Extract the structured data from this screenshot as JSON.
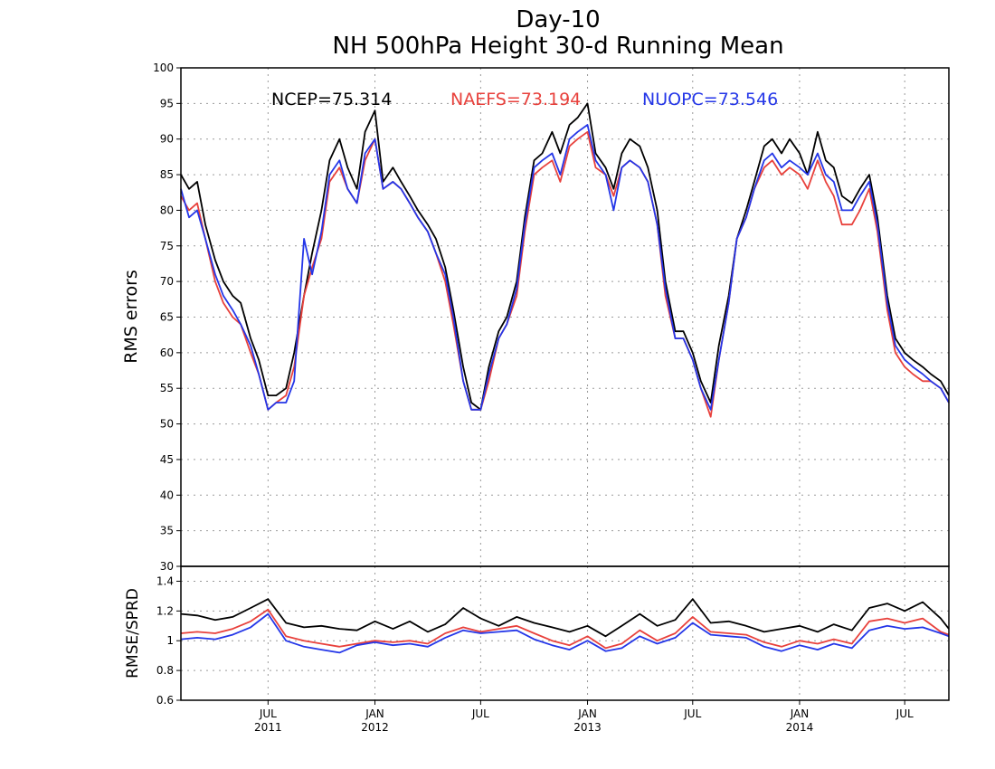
{
  "chart_data": [
    {
      "type": "line",
      "title": "Day-10",
      "subtitle": "NH 500hPa Height 30-d Running Mean",
      "xlabel": "",
      "ylabel": "RMS errors",
      "ylim": [
        30,
        100
      ],
      "yticks": [
        30,
        35,
        40,
        45,
        50,
        55,
        60,
        65,
        70,
        75,
        80,
        85,
        90,
        95,
        100
      ],
      "grid": true,
      "x_range": [
        "2011-02-01",
        "2014-09-15"
      ],
      "xticks": [
        {
          "date": "2011-07-01",
          "label": "JUL",
          "year": "2011"
        },
        {
          "date": "2012-01-01",
          "label": "JAN",
          "year": "2012"
        },
        {
          "date": "2012-07-01",
          "label": "JUL",
          "year": ""
        },
        {
          "date": "2013-01-01",
          "label": "JAN",
          "year": "2013"
        },
        {
          "date": "2013-07-01",
          "label": "JUL",
          "year": ""
        },
        {
          "date": "2014-01-01",
          "label": "JAN",
          "year": "2014"
        },
        {
          "date": "2014-07-01",
          "label": "JUL",
          "year": ""
        }
      ],
      "legend": [
        {
          "text": "NCEP=75.314",
          "color": "#000000"
        },
        {
          "text": "NAEFS=73.194",
          "color": "#e8413c"
        },
        {
          "text": "NUOPC=73.546",
          "color": "#2436e8"
        }
      ],
      "series": [
        {
          "name": "NCEP",
          "color": "#000000",
          "x": [
            "2011-02-01",
            "2011-02-15",
            "2011-03-01",
            "2011-03-15",
            "2011-04-01",
            "2011-04-15",
            "2011-05-01",
            "2011-05-15",
            "2011-06-01",
            "2011-06-15",
            "2011-07-01",
            "2011-07-15",
            "2011-08-01",
            "2011-08-15",
            "2011-09-01",
            "2011-09-15",
            "2011-10-01",
            "2011-10-15",
            "2011-11-01",
            "2011-11-15",
            "2011-12-01",
            "2011-12-15",
            "2012-01-01",
            "2012-01-15",
            "2012-02-01",
            "2012-02-15",
            "2012-03-01",
            "2012-03-15",
            "2012-04-01",
            "2012-04-15",
            "2012-05-01",
            "2012-05-15",
            "2012-06-01",
            "2012-06-15",
            "2012-07-01",
            "2012-07-15",
            "2012-08-01",
            "2012-08-15",
            "2012-09-01",
            "2012-09-15",
            "2012-10-01",
            "2012-10-15",
            "2012-11-01",
            "2012-11-15",
            "2012-12-01",
            "2012-12-15",
            "2013-01-01",
            "2013-01-15",
            "2013-02-01",
            "2013-02-15",
            "2013-03-01",
            "2013-03-15",
            "2013-04-01",
            "2013-04-15",
            "2013-05-01",
            "2013-05-15",
            "2013-06-01",
            "2013-06-15",
            "2013-07-01",
            "2013-07-15",
            "2013-08-01",
            "2013-08-15",
            "2013-09-01",
            "2013-09-15",
            "2013-10-01",
            "2013-10-15",
            "2013-11-01",
            "2013-11-15",
            "2013-12-01",
            "2013-12-15",
            "2014-01-01",
            "2014-01-15",
            "2014-02-01",
            "2014-02-15",
            "2014-03-01",
            "2014-03-15",
            "2014-04-01",
            "2014-04-15",
            "2014-05-01",
            "2014-05-15",
            "2014-06-01",
            "2014-06-15",
            "2014-07-01",
            "2014-07-15",
            "2014-08-01",
            "2014-08-15",
            "2014-09-01",
            "2014-09-15"
          ],
          "values": [
            85,
            83,
            84,
            78,
            73,
            70,
            68,
            67,
            62,
            59,
            54,
            54,
            55,
            60,
            68,
            74,
            80,
            87,
            90,
            86,
            83,
            91,
            94,
            84,
            86,
            84,
            82,
            80,
            78,
            76,
            72,
            66,
            58,
            53,
            52,
            58,
            63,
            65,
            70,
            79,
            87,
            88,
            91,
            88,
            92,
            93,
            95,
            88,
            86,
            83,
            88,
            90,
            89,
            86,
            80,
            70,
            63,
            63,
            60,
            56,
            53,
            61,
            68,
            76,
            80,
            84,
            89,
            90,
            88,
            90,
            88,
            85,
            91,
            87,
            86,
            82,
            81,
            83,
            85,
            79,
            68,
            62,
            60,
            59,
            58,
            57,
            56,
            54
          ]
        },
        {
          "name": "NAEFS",
          "color": "#e8413c",
          "x": [
            "2011-02-01",
            "2011-02-15",
            "2011-03-01",
            "2011-03-15",
            "2011-04-01",
            "2011-04-15",
            "2011-05-01",
            "2011-05-15",
            "2011-06-01",
            "2011-06-15",
            "2011-07-01",
            "2011-07-15",
            "2011-08-01",
            "2011-08-15",
            "2011-09-01",
            "2011-09-15",
            "2011-10-01",
            "2011-10-15",
            "2011-11-01",
            "2011-11-15",
            "2011-12-01",
            "2011-12-15",
            "2012-01-01",
            "2012-01-15",
            "2012-02-01",
            "2012-02-15",
            "2012-03-01",
            "2012-03-15",
            "2012-04-01",
            "2012-04-15",
            "2012-05-01",
            "2012-05-15",
            "2012-06-01",
            "2012-06-15",
            "2012-07-01",
            "2012-07-15",
            "2012-08-01",
            "2012-08-15",
            "2012-09-01",
            "2012-09-15",
            "2012-10-01",
            "2012-10-15",
            "2012-11-01",
            "2012-11-15",
            "2012-12-01",
            "2012-12-15",
            "2013-01-01",
            "2013-01-15",
            "2013-02-01",
            "2013-02-15",
            "2013-03-01",
            "2013-03-15",
            "2013-04-01",
            "2013-04-15",
            "2013-05-01",
            "2013-05-15",
            "2013-06-01",
            "2013-06-15",
            "2013-07-01",
            "2013-07-15",
            "2013-08-01",
            "2013-08-15",
            "2013-09-01",
            "2013-09-15",
            "2013-10-01",
            "2013-10-15",
            "2013-11-01",
            "2013-11-15",
            "2013-12-01",
            "2013-12-15",
            "2014-01-01",
            "2014-01-15",
            "2014-02-01",
            "2014-02-15",
            "2014-03-01",
            "2014-03-15",
            "2014-04-01",
            "2014-04-15",
            "2014-05-01",
            "2014-05-15",
            "2014-06-01",
            "2014-06-15",
            "2014-07-01",
            "2014-07-15",
            "2014-08-01",
            "2014-08-15",
            "2014-09-01",
            "2014-09-15"
          ],
          "values": [
            82,
            80,
            81,
            76,
            70,
            67,
            65,
            64,
            60,
            57,
            52,
            53,
            54,
            58,
            68,
            72,
            76,
            84,
            86,
            83,
            81,
            87,
            90,
            83,
            84,
            83,
            81,
            79,
            77,
            74,
            70,
            64,
            56,
            52,
            52,
            56,
            62,
            64,
            68,
            77,
            85,
            86,
            87,
            84,
            89,
            90,
            91,
            86,
            85,
            82,
            86,
            87,
            86,
            84,
            78,
            68,
            62,
            62,
            59,
            55,
            51,
            59,
            67,
            76,
            79,
            83,
            86,
            87,
            85,
            86,
            85,
            83,
            87,
            84,
            82,
            78,
            78,
            80,
            83,
            77,
            66,
            60,
            58,
            57,
            56,
            56,
            55,
            53
          ]
        },
        {
          "name": "NUOPC",
          "color": "#2436e8",
          "x": [
            "2011-02-01",
            "2011-02-15",
            "2011-03-01",
            "2011-03-15",
            "2011-04-01",
            "2011-04-15",
            "2011-05-01",
            "2011-05-15",
            "2011-06-01",
            "2011-06-15",
            "2011-07-01",
            "2011-07-15",
            "2011-08-01",
            "2011-08-15",
            "2011-09-01",
            "2011-09-15",
            "2011-10-01",
            "2011-10-15",
            "2011-11-01",
            "2011-11-15",
            "2011-12-01",
            "2011-12-15",
            "2012-01-01",
            "2012-01-15",
            "2012-02-01",
            "2012-02-15",
            "2012-03-01",
            "2012-03-15",
            "2012-04-01",
            "2012-04-15",
            "2012-05-01",
            "2012-05-15",
            "2012-06-01",
            "2012-06-15",
            "2012-07-01",
            "2012-07-15",
            "2012-08-01",
            "2012-08-15",
            "2012-09-01",
            "2012-09-15",
            "2012-10-01",
            "2012-10-15",
            "2012-11-01",
            "2012-11-15",
            "2012-12-01",
            "2012-12-15",
            "2013-01-01",
            "2013-01-15",
            "2013-02-01",
            "2013-02-15",
            "2013-03-01",
            "2013-03-15",
            "2013-04-01",
            "2013-04-15",
            "2013-05-01",
            "2013-05-15",
            "2013-06-01",
            "2013-06-15",
            "2013-07-01",
            "2013-07-15",
            "2013-08-01",
            "2013-08-15",
            "2013-09-01",
            "2013-09-15",
            "2013-10-01",
            "2013-10-15",
            "2013-11-01",
            "2013-11-15",
            "2013-12-01",
            "2013-12-15",
            "2014-01-01",
            "2014-01-15",
            "2014-02-01",
            "2014-02-15",
            "2014-03-01",
            "2014-03-15",
            "2014-04-01",
            "2014-04-15",
            "2014-05-01",
            "2014-05-15",
            "2014-06-01",
            "2014-06-15",
            "2014-07-01",
            "2014-07-15",
            "2014-08-01",
            "2014-08-15",
            "2014-09-01",
            "2014-09-15"
          ],
          "values": [
            83,
            79,
            80,
            76,
            71,
            68,
            66,
            64,
            61,
            57,
            52,
            53,
            53,
            56,
            76,
            71,
            77,
            85,
            87,
            83,
            81,
            88,
            90,
            83,
            84,
            83,
            81,
            79,
            77,
            74,
            71,
            65,
            56,
            52,
            52,
            57,
            62,
            64,
            69,
            78,
            86,
            87,
            88,
            85,
            90,
            91,
            92,
            87,
            85,
            80,
            86,
            87,
            86,
            84,
            78,
            69,
            62,
            62,
            59,
            55,
            52,
            59,
            67,
            76,
            79,
            83,
            87,
            88,
            86,
            87,
            86,
            85,
            88,
            85,
            84,
            80,
            80,
            82,
            84,
            78,
            67,
            61,
            59,
            58,
            57,
            56,
            55,
            53
          ]
        }
      ]
    },
    {
      "type": "line",
      "ylabel": "RMSE/SPRD",
      "ylim": [
        0.6,
        1.5
      ],
      "yticks": [
        0.6,
        0.8,
        1,
        1.2,
        1.4
      ],
      "grid": true,
      "series": [
        {
          "name": "NCEP",
          "color": "#000000",
          "x": [
            "2011-02-01",
            "2011-03-01",
            "2011-04-01",
            "2011-05-01",
            "2011-06-01",
            "2011-07-01",
            "2011-08-01",
            "2011-09-01",
            "2011-10-01",
            "2011-11-01",
            "2011-12-01",
            "2012-01-01",
            "2012-02-01",
            "2012-03-01",
            "2012-04-01",
            "2012-05-01",
            "2012-06-01",
            "2012-07-01",
            "2012-08-01",
            "2012-09-01",
            "2012-10-01",
            "2012-11-01",
            "2012-12-01",
            "2013-01-01",
            "2013-02-01",
            "2013-03-01",
            "2013-04-01",
            "2013-05-01",
            "2013-06-01",
            "2013-07-01",
            "2013-08-01",
            "2013-09-01",
            "2013-10-01",
            "2013-11-01",
            "2013-12-01",
            "2014-01-01",
            "2014-02-01",
            "2014-03-01",
            "2014-04-01",
            "2014-05-01",
            "2014-06-01",
            "2014-07-01",
            "2014-08-01",
            "2014-09-01",
            "2014-09-15"
          ],
          "values": [
            1.18,
            1.17,
            1.14,
            1.16,
            1.22,
            1.28,
            1.12,
            1.09,
            1.1,
            1.08,
            1.07,
            1.13,
            1.08,
            1.13,
            1.06,
            1.11,
            1.22,
            1.15,
            1.1,
            1.16,
            1.12,
            1.09,
            1.06,
            1.1,
            1.03,
            1.1,
            1.18,
            1.1,
            1.14,
            1.28,
            1.12,
            1.13,
            1.1,
            1.06,
            1.08,
            1.1,
            1.06,
            1.11,
            1.07,
            1.22,
            1.25,
            1.2,
            1.26,
            1.15,
            1.08
          ]
        },
        {
          "name": "NAEFS",
          "color": "#e8413c",
          "x": [
            "2011-02-01",
            "2011-03-01",
            "2011-04-01",
            "2011-05-01",
            "2011-06-01",
            "2011-07-01",
            "2011-08-01",
            "2011-09-01",
            "2011-10-01",
            "2011-11-01",
            "2011-12-01",
            "2012-01-01",
            "2012-02-01",
            "2012-03-01",
            "2012-04-01",
            "2012-05-01",
            "2012-06-01",
            "2012-07-01",
            "2012-08-01",
            "2012-09-01",
            "2012-10-01",
            "2012-11-01",
            "2012-12-01",
            "2013-01-01",
            "2013-02-01",
            "2013-03-01",
            "2013-04-01",
            "2013-05-01",
            "2013-06-01",
            "2013-07-01",
            "2013-08-01",
            "2013-09-01",
            "2013-10-01",
            "2013-11-01",
            "2013-12-01",
            "2014-01-01",
            "2014-02-01",
            "2014-03-01",
            "2014-04-01",
            "2014-05-01",
            "2014-06-01",
            "2014-07-01",
            "2014-08-01",
            "2014-09-01",
            "2014-09-15"
          ],
          "values": [
            1.05,
            1.06,
            1.05,
            1.08,
            1.13,
            1.21,
            1.03,
            1.0,
            0.98,
            0.96,
            0.98,
            1.0,
            0.99,
            1.0,
            0.98,
            1.05,
            1.09,
            1.06,
            1.08,
            1.1,
            1.05,
            1.0,
            0.97,
            1.03,
            0.95,
            0.98,
            1.07,
            1.0,
            1.05,
            1.16,
            1.06,
            1.05,
            1.04,
            0.99,
            0.96,
            1.0,
            0.98,
            1.01,
            0.98,
            1.13,
            1.15,
            1.12,
            1.15,
            1.06,
            1.04
          ]
        },
        {
          "name": "NUOPC",
          "color": "#2436e8",
          "x": [
            "2011-02-01",
            "2011-03-01",
            "2011-04-01",
            "2011-05-01",
            "2011-06-01",
            "2011-07-01",
            "2011-08-01",
            "2011-09-01",
            "2011-10-01",
            "2011-11-01",
            "2011-12-01",
            "2012-01-01",
            "2012-02-01",
            "2012-03-01",
            "2012-04-01",
            "2012-05-01",
            "2012-06-01",
            "2012-07-01",
            "2012-08-01",
            "2012-09-01",
            "2012-10-01",
            "2012-11-01",
            "2012-12-01",
            "2013-01-01",
            "2013-02-01",
            "2013-03-01",
            "2013-04-01",
            "2013-05-01",
            "2013-06-01",
            "2013-07-01",
            "2013-08-01",
            "2013-09-01",
            "2013-10-01",
            "2013-11-01",
            "2013-12-01",
            "2014-01-01",
            "2014-02-01",
            "2014-03-01",
            "2014-04-01",
            "2014-05-01",
            "2014-06-01",
            "2014-07-01",
            "2014-08-01",
            "2014-09-01",
            "2014-09-15"
          ],
          "values": [
            1.01,
            1.02,
            1.01,
            1.04,
            1.09,
            1.18,
            1.0,
            0.96,
            0.94,
            0.92,
            0.97,
            0.99,
            0.97,
            0.98,
            0.96,
            1.02,
            1.07,
            1.05,
            1.06,
            1.07,
            1.01,
            0.97,
            0.94,
            1.0,
            0.93,
            0.95,
            1.03,
            0.98,
            1.02,
            1.12,
            1.04,
            1.03,
            1.02,
            0.96,
            0.93,
            0.97,
            0.94,
            0.98,
            0.95,
            1.07,
            1.1,
            1.08,
            1.09,
            1.05,
            1.03
          ]
        }
      ]
    }
  ]
}
